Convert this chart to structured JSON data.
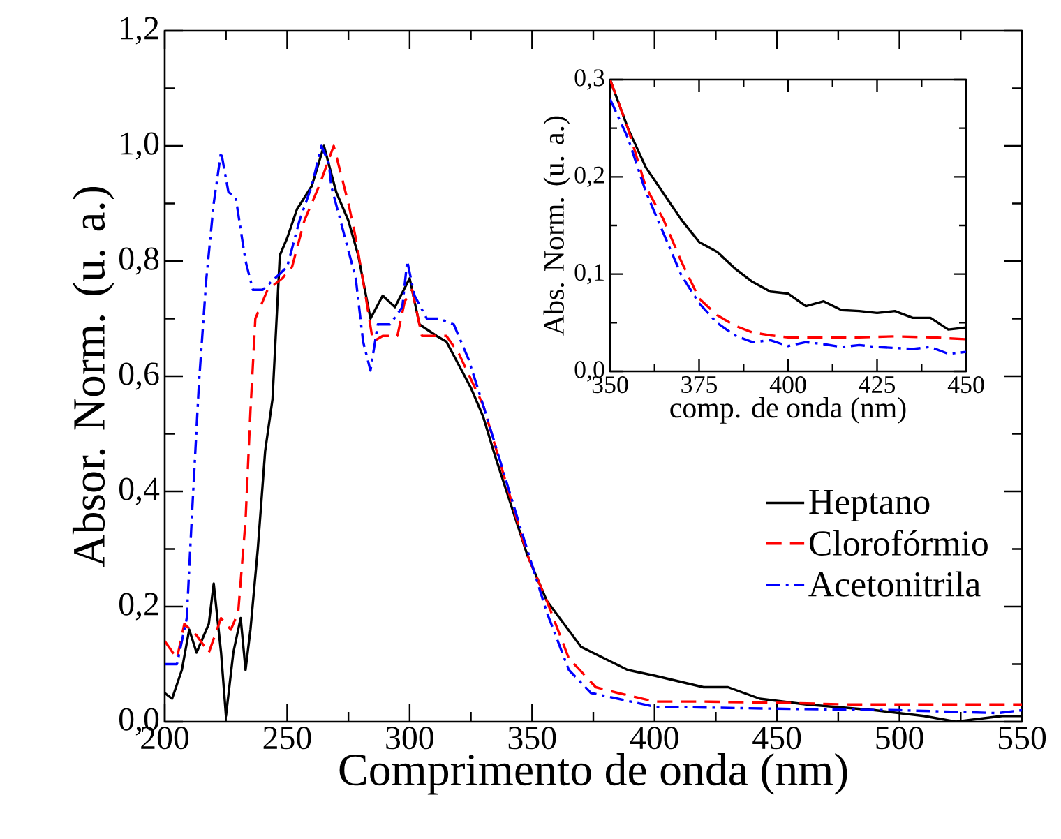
{
  "chart_data": [
    {
      "type": "line",
      "xlabel": "Comprimento de onda (nm)",
      "ylabel": "Absor. Norm. (u. a.)",
      "xlim": [
        200,
        550
      ],
      "ylim": [
        0,
        1.2
      ],
      "xticks": [
        200,
        250,
        300,
        350,
        400,
        450,
        500,
        550
      ],
      "yticks": [
        {
          "value": 0,
          "label": "0,0"
        },
        {
          "value": 0.2,
          "label": "0,2"
        },
        {
          "value": 0.4,
          "label": "0,4"
        },
        {
          "value": 0.6,
          "label": "0,6"
        },
        {
          "value": 0.8,
          "label": "0,8"
        },
        {
          "value": 1.0,
          "label": "1,0"
        },
        {
          "value": 1.2,
          "label": "1,2"
        }
      ],
      "grid": false,
      "legend": "right",
      "series": [
        {
          "name": "Heptano",
          "color": "#000000",
          "line_style": "solid",
          "x": [
            200,
            203,
            207,
            210,
            213,
            216,
            218,
            220,
            223,
            225,
            228,
            231,
            233,
            235,
            238,
            241,
            244,
            247,
            250,
            254,
            260,
            265,
            270,
            275,
            279,
            284,
            289,
            294,
            300,
            304,
            311,
            315,
            320,
            325,
            330,
            335,
            348,
            356,
            370,
            389,
            400,
            410,
            420,
            430,
            443,
            462,
            490,
            510,
            523,
            542,
            550
          ],
          "values": [
            0.05,
            0.04,
            0.09,
            0.16,
            0.12,
            0.15,
            0.17,
            0.24,
            0.12,
            0.01,
            0.12,
            0.18,
            0.09,
            0.16,
            0.3,
            0.47,
            0.56,
            0.81,
            0.84,
            0.89,
            0.93,
            1.0,
            0.92,
            0.87,
            0.81,
            0.7,
            0.74,
            0.72,
            0.77,
            0.69,
            0.67,
            0.66,
            0.62,
            0.58,
            0.53,
            0.46,
            0.29,
            0.21,
            0.13,
            0.09,
            0.08,
            0.07,
            0.06,
            0.06,
            0.04,
            0.03,
            0.02,
            0.01,
            0.0,
            0.01,
            0.01
          ]
        },
        {
          "name": "Clorofórmio",
          "color": "#ff0000",
          "line_style": "dashed",
          "x": [
            200,
            205,
            208,
            213,
            218,
            223,
            227,
            230,
            233,
            235,
            237,
            242,
            248,
            252,
            257,
            263,
            269,
            275,
            278,
            282,
            285,
            289,
            295,
            298,
            301,
            305,
            310,
            315,
            320,
            330,
            348,
            356,
            365,
            376,
            385,
            400,
            420,
            450,
            480,
            520,
            550
          ],
          "values": [
            0.14,
            0.11,
            0.17,
            0.15,
            0.12,
            0.18,
            0.16,
            0.19,
            0.35,
            0.54,
            0.7,
            0.75,
            0.77,
            0.79,
            0.87,
            0.93,
            1.0,
            0.9,
            0.84,
            0.74,
            0.66,
            0.67,
            0.67,
            0.73,
            0.75,
            0.67,
            0.67,
            0.67,
            0.64,
            0.55,
            0.29,
            0.21,
            0.11,
            0.06,
            0.05,
            0.035,
            0.035,
            0.033,
            0.03,
            0.03,
            0.03
          ]
        },
        {
          "name": "Acetonitrila",
          "color": "#0000ff",
          "line_style": "dashdot",
          "x": [
            200,
            205,
            209,
            211,
            214,
            217,
            220,
            223,
            226,
            229,
            233,
            236,
            240,
            245,
            250,
            255,
            260,
            264,
            267,
            268,
            273,
            278,
            281,
            284,
            287,
            292,
            297,
            299,
            302,
            307,
            312,
            318,
            324,
            330,
            345,
            356,
            365,
            374,
            385,
            400,
            430,
            460,
            500,
            540,
            550
          ],
          "values": [
            0.1,
            0.1,
            0.18,
            0.35,
            0.59,
            0.77,
            0.9,
            0.99,
            0.92,
            0.91,
            0.8,
            0.75,
            0.75,
            0.77,
            0.79,
            0.87,
            0.93,
            1.0,
            0.97,
            0.93,
            0.85,
            0.77,
            0.66,
            0.61,
            0.69,
            0.69,
            0.72,
            0.8,
            0.74,
            0.7,
            0.7,
            0.69,
            0.63,
            0.55,
            0.34,
            0.19,
            0.09,
            0.05,
            0.04,
            0.026,
            0.024,
            0.022,
            0.02,
            0.015,
            0.02
          ]
        }
      ]
    },
    {
      "type": "line",
      "xlabel": "comp. de onda (nm)",
      "ylabel": "Abs. Norm. (u. a.)",
      "xlim": [
        350,
        450
      ],
      "ylim": [
        0,
        0.3
      ],
      "xticks": [
        350,
        375,
        400,
        425,
        450
      ],
      "yticks": [
        {
          "value": 0,
          "label": "0,0"
        },
        {
          "value": 0.1,
          "label": "0,1"
        },
        {
          "value": 0.2,
          "label": "0,2"
        },
        {
          "value": 0.3,
          "label": "0,3"
        }
      ],
      "grid": false,
      "series": [
        {
          "color": "#000000",
          "line_style": "solid",
          "x": [
            350,
            355,
            360,
            365,
            370,
            375,
            380,
            385,
            390,
            395,
            400,
            405,
            410,
            415,
            420,
            425,
            430,
            435,
            440,
            445,
            450
          ],
          "values": [
            0.3,
            0.25,
            0.21,
            0.183,
            0.156,
            0.133,
            0.123,
            0.106,
            0.092,
            0.082,
            0.08,
            0.067,
            0.072,
            0.063,
            0.062,
            0.06,
            0.062,
            0.055,
            0.055,
            0.043,
            0.045
          ]
        },
        {
          "color": "#ff0000",
          "line_style": "dashed",
          "x": [
            350,
            355,
            360,
            365,
            370,
            375,
            380,
            385,
            390,
            395,
            400,
            410,
            420,
            430,
            440,
            450
          ],
          "values": [
            0.3,
            0.25,
            0.19,
            0.156,
            0.113,
            0.075,
            0.058,
            0.047,
            0.04,
            0.037,
            0.035,
            0.035,
            0.035,
            0.036,
            0.035,
            0.033
          ]
        },
        {
          "color": "#0000ff",
          "line_style": "dashdot",
          "x": [
            350,
            355,
            360,
            365,
            370,
            375,
            380,
            385,
            390,
            395,
            400,
            405,
            410,
            415,
            420,
            425,
            430,
            435,
            440,
            445,
            450
          ],
          "values": [
            0.28,
            0.24,
            0.185,
            0.142,
            0.099,
            0.07,
            0.05,
            0.037,
            0.03,
            0.032,
            0.026,
            0.03,
            0.028,
            0.025,
            0.027,
            0.025,
            0.024,
            0.023,
            0.025,
            0.018,
            0.02
          ]
        }
      ]
    }
  ]
}
